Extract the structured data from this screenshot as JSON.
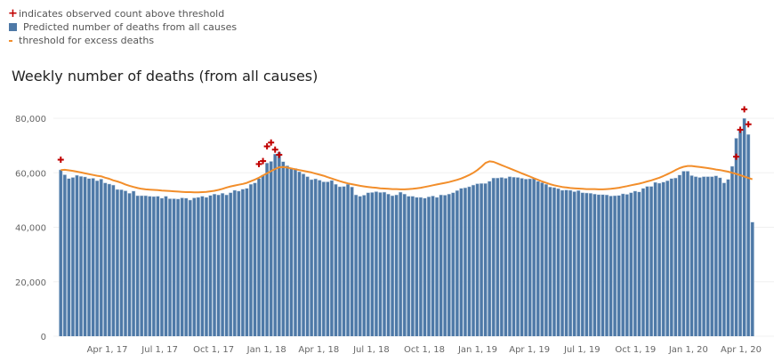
{
  "legend": {
    "items": [
      {
        "symbol": "+",
        "label": "indicates observed count above threshold",
        "color": "#c00000"
      },
      {
        "symbol": "square",
        "label": "Predicted number of deaths from all causes",
        "color": "#4e79a7"
      },
      {
        "symbol": "-",
        "label": "threshold for excess deaths",
        "color": "#f28e2b"
      }
    ]
  },
  "chart_data": {
    "type": "bar",
    "title": "Weekly number of deaths (from all causes)",
    "xlabel": "",
    "ylabel": "",
    "ylim": [
      0,
      85000
    ],
    "y_ticks": [
      {
        "value": 0,
        "label": "0"
      },
      {
        "value": 20000,
        "label": "20,000"
      },
      {
        "value": 40000,
        "label": "40,000"
      },
      {
        "value": 60000,
        "label": "60,000"
      },
      {
        "value": 80000,
        "label": "80,000"
      }
    ],
    "x_ticks": [
      {
        "week_index": 12,
        "label": "Apr 1, 17"
      },
      {
        "week_index": 25,
        "label": "Jul 1, 17"
      },
      {
        "week_index": 38.3,
        "label": "Oct 1, 17"
      },
      {
        "week_index": 51.4,
        "label": "Jan 1, 18"
      },
      {
        "week_index": 64.3,
        "label": "Apr 1, 18"
      },
      {
        "week_index": 77.3,
        "label": "Jul 1, 18"
      },
      {
        "week_index": 90.4,
        "label": "Oct 1, 18"
      },
      {
        "week_index": 103.6,
        "label": "Jan 1, 19"
      },
      {
        "week_index": 116.4,
        "label": "Apr 1, 19"
      },
      {
        "week_index": 129.4,
        "label": "Jul 1, 19"
      },
      {
        "week_index": 142.6,
        "label": "Oct 1, 19"
      },
      {
        "week_index": 155.7,
        "label": "Jan 1, 20"
      },
      {
        "week_index": 168.7,
        "label": "Apr 1, 20"
      }
    ],
    "grid": true,
    "legend_position": "top-left",
    "series": [
      {
        "name": "Predicted number of deaths from all causes",
        "type": "bar",
        "color": "#4e79a7",
        "values": [
          61000,
          59200,
          57800,
          58200,
          59000,
          58600,
          58400,
          57800,
          57900,
          57000,
          57600,
          56200,
          55800,
          55400,
          53800,
          53700,
          53300,
          52400,
          53200,
          51500,
          51500,
          51500,
          51300,
          51200,
          51300,
          50600,
          51300,
          50400,
          50400,
          50300,
          50700,
          50600,
          49900,
          50700,
          50900,
          51300,
          50900,
          51600,
          52100,
          51800,
          52400,
          51800,
          52600,
          53500,
          53200,
          53900,
          54200,
          55700,
          56200,
          57800,
          59100,
          63500,
          64100,
          66800,
          67500,
          64000,
          62500,
          61500,
          61500,
          60300,
          59500,
          58500,
          57400,
          57700,
          57200,
          56600,
          56600,
          57100,
          55700,
          54800,
          54900,
          55700,
          54700,
          51800,
          51300,
          51700,
          52600,
          52700,
          53000,
          52700,
          52800,
          52100,
          51500,
          51800,
          52800,
          52100,
          51300,
          51300,
          50900,
          50900,
          50600,
          51100,
          51400,
          50900,
          51800,
          51700,
          52100,
          52600,
          53400,
          54200,
          54400,
          54800,
          55400,
          55900,
          56000,
          56000,
          56800,
          58000,
          58000,
          58200,
          57900,
          58500,
          58300,
          58200,
          57900,
          57600,
          57700,
          57800,
          56800,
          56300,
          55700,
          54700,
          54500,
          54100,
          53500,
          53600,
          53500,
          53000,
          53400,
          52600,
          52500,
          52400,
          52100,
          51900,
          51900,
          51800,
          51400,
          51500,
          51600,
          52200,
          52000,
          52600,
          53200,
          52900,
          54200,
          54900,
          54900,
          56400,
          56100,
          56500,
          57000,
          57800,
          58000,
          59100,
          60500,
          60500,
          58900,
          58500,
          58200,
          58500,
          58500,
          58500,
          58800,
          58100,
          56200,
          57500,
          62300,
          72600,
          75800,
          79900,
          74000,
          41800
        ]
      },
      {
        "name": "threshold for excess deaths",
        "type": "line",
        "color": "#f28e2b",
        "values": [
          61000,
          61100,
          60900,
          60700,
          60400,
          60100,
          59800,
          59500,
          59200,
          58900,
          58700,
          58200,
          57800,
          57200,
          56800,
          56300,
          55700,
          55200,
          54800,
          54400,
          54100,
          53900,
          53800,
          53700,
          53600,
          53500,
          53400,
          53300,
          53200,
          53100,
          53000,
          52900,
          52900,
          52800,
          52800,
          52900,
          53000,
          53200,
          53400,
          53700,
          54100,
          54600,
          55000,
          55300,
          55600,
          55900,
          56300,
          56900,
          57500,
          58200,
          59000,
          59800,
          60600,
          61400,
          62000,
          62100,
          61900,
          61600,
          61300,
          61000,
          60700,
          60400,
          60100,
          59700,
          59300,
          58900,
          58400,
          57900,
          57400,
          56900,
          56500,
          56100,
          55800,
          55500,
          55200,
          55000,
          54800,
          54600,
          54500,
          54300,
          54200,
          54100,
          54000,
          54000,
          53900,
          53900,
          54000,
          54100,
          54300,
          54500,
          54800,
          55100,
          55400,
          55700,
          56000,
          56300,
          56600,
          57000,
          57400,
          57900,
          58500,
          59200,
          60000,
          61000,
          62200,
          63600,
          64200,
          64000,
          63400,
          62800,
          62200,
          61600,
          61000,
          60400,
          59800,
          59200,
          58600,
          58000,
          57400,
          56800,
          56300,
          55800,
          55400,
          55100,
          54800,
          54600,
          54400,
          54300,
          54200,
          54100,
          54000,
          54000,
          54000,
          53900,
          53900,
          54000,
          54100,
          54300,
          54500,
          54800,
          55100,
          55400,
          55700,
          56000,
          56400,
          56800,
          57200,
          57700,
          58200,
          58800,
          59500,
          60200,
          61000,
          61700,
          62200,
          62500,
          62500,
          62300,
          62100,
          61900,
          61700,
          61500,
          61200,
          61000,
          60700,
          60400,
          60000,
          59600,
          59100,
          58600,
          58100,
          57600,
          57100
        ]
      },
      {
        "name": "indicates observed count above threshold",
        "type": "scatter",
        "color": "#c00000",
        "points": [
          {
            "week_index": 0,
            "value": 64800
          },
          {
            "week_index": 49,
            "value": 63200
          },
          {
            "week_index": 50,
            "value": 64300
          },
          {
            "week_index": 51,
            "value": 69700
          },
          {
            "week_index": 52,
            "value": 71100
          },
          {
            "week_index": 53,
            "value": 68500
          },
          {
            "week_index": 54,
            "value": 66600
          },
          {
            "week_index": 167,
            "value": 65900
          },
          {
            "week_index": 168,
            "value": 75800
          },
          {
            "week_index": 169,
            "value": 83300
          },
          {
            "week_index": 170,
            "value": 77800
          }
        ]
      }
    ]
  }
}
